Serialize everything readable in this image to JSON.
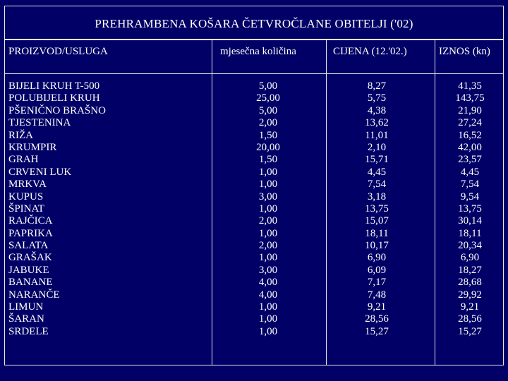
{
  "title": "PREHRAMBENA KOŠARA ČETVROČLANE OBITELJI ('02)",
  "headers": {
    "product": "PROIZVOD/USLUGA",
    "quantity": "mjesečna količina",
    "price": "CIJENA (12.'02.)",
    "amount": "IZNOS (kn)"
  },
  "rows": [
    {
      "product": "BIJELI KRUH T-500",
      "quantity": "5,00",
      "price": "8,27",
      "amount": "41,35"
    },
    {
      "product": "POLUBIJELI KRUH",
      "quantity": "25,00",
      "price": "5,75",
      "amount": "143,75"
    },
    {
      "product": "PŠENIČNO BRAŠNO",
      "quantity": "5,00",
      "price": "4,38",
      "amount": "21,90"
    },
    {
      "product": "TJESTENINA",
      "quantity": "2,00",
      "price": "13,62",
      "amount": "27,24"
    },
    {
      "product": "RIŽA",
      "quantity": "1,50",
      "price": "11,01",
      "amount": "16,52"
    },
    {
      "product": "KRUMPIR",
      "quantity": "20,00",
      "price": "2,10",
      "amount": "42,00"
    },
    {
      "product": "GRAH",
      "quantity": "1,50",
      "price": "15,71",
      "amount": "23,57"
    },
    {
      "product": "CRVENI LUK",
      "quantity": "1,00",
      "price": "4,45",
      "amount": "4,45"
    },
    {
      "product": "MRKVA",
      "quantity": "1,00",
      "price": "7,54",
      "amount": "7,54"
    },
    {
      "product": "KUPUS",
      "quantity": "3,00",
      "price": "3,18",
      "amount": "9,54"
    },
    {
      "product": "ŠPINAT",
      "quantity": "1,00",
      "price": "13,75",
      "amount": "13,75"
    },
    {
      "product": "RAJČICA",
      "quantity": "2,00",
      "price": "15,07",
      "amount": "30,14"
    },
    {
      "product": "PAPRIKA",
      "quantity": "1,00",
      "price": "18,11",
      "amount": "18,11"
    },
    {
      "product": "SALATA",
      "quantity": "2,00",
      "price": "10,17",
      "amount": "20,34"
    },
    {
      "product": "GRAŠAK",
      "quantity": "1,00",
      "price": "6,90",
      "amount": "6,90"
    },
    {
      "product": "JABUKE",
      "quantity": "3,00",
      "price": "6,09",
      "amount": "18,27"
    },
    {
      "product": "BANANE",
      "quantity": "4,00",
      "price": "7,17",
      "amount": "28,68"
    },
    {
      "product": "NARANČE",
      "quantity": "4,00",
      "price": "7,48",
      "amount": "29,92"
    },
    {
      "product": "LIMUN",
      "quantity": "1,00",
      "price": "9,21",
      "amount": "9,21"
    },
    {
      "product": "ŠARAN",
      "quantity": "1,00",
      "price": "28,56",
      "amount": "28,56"
    },
    {
      "product": "SRDELE",
      "quantity": "1,00",
      "price": "15,27",
      "amount": "15,27"
    }
  ]
}
